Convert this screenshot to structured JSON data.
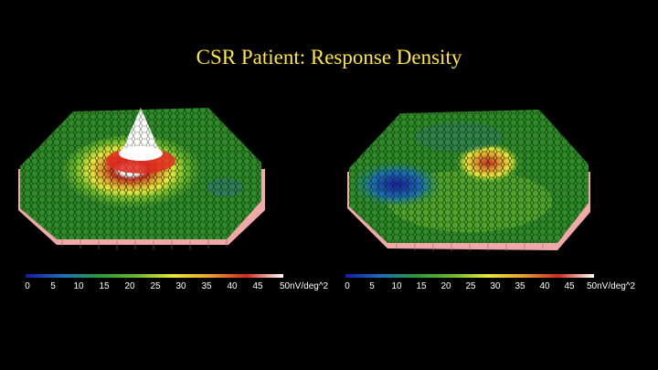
{
  "title": "CSR Patient:  Response Density",
  "colormap": [
    "#1a1aa8",
    "#1b6fb8",
    "#2a9a3a",
    "#69b82c",
    "#e8e83a",
    "#e8a030",
    "#d02a20",
    "#ffffff"
  ],
  "panels": [
    {
      "id": "left",
      "peak": "central-spike",
      "scale": {
        "ticks": [
          "0",
          "5",
          "10",
          "15",
          "20",
          "25",
          "30",
          "35",
          "40",
          "45"
        ],
        "unit": "50nV/deg^2"
      }
    },
    {
      "id": "right",
      "peak": "flattened-with-depression",
      "scale": {
        "ticks": [
          "0",
          "5",
          "10",
          "15",
          "20",
          "25",
          "30",
          "35",
          "40",
          "45"
        ],
        "unit": "50nV/deg^2"
      }
    }
  ]
}
